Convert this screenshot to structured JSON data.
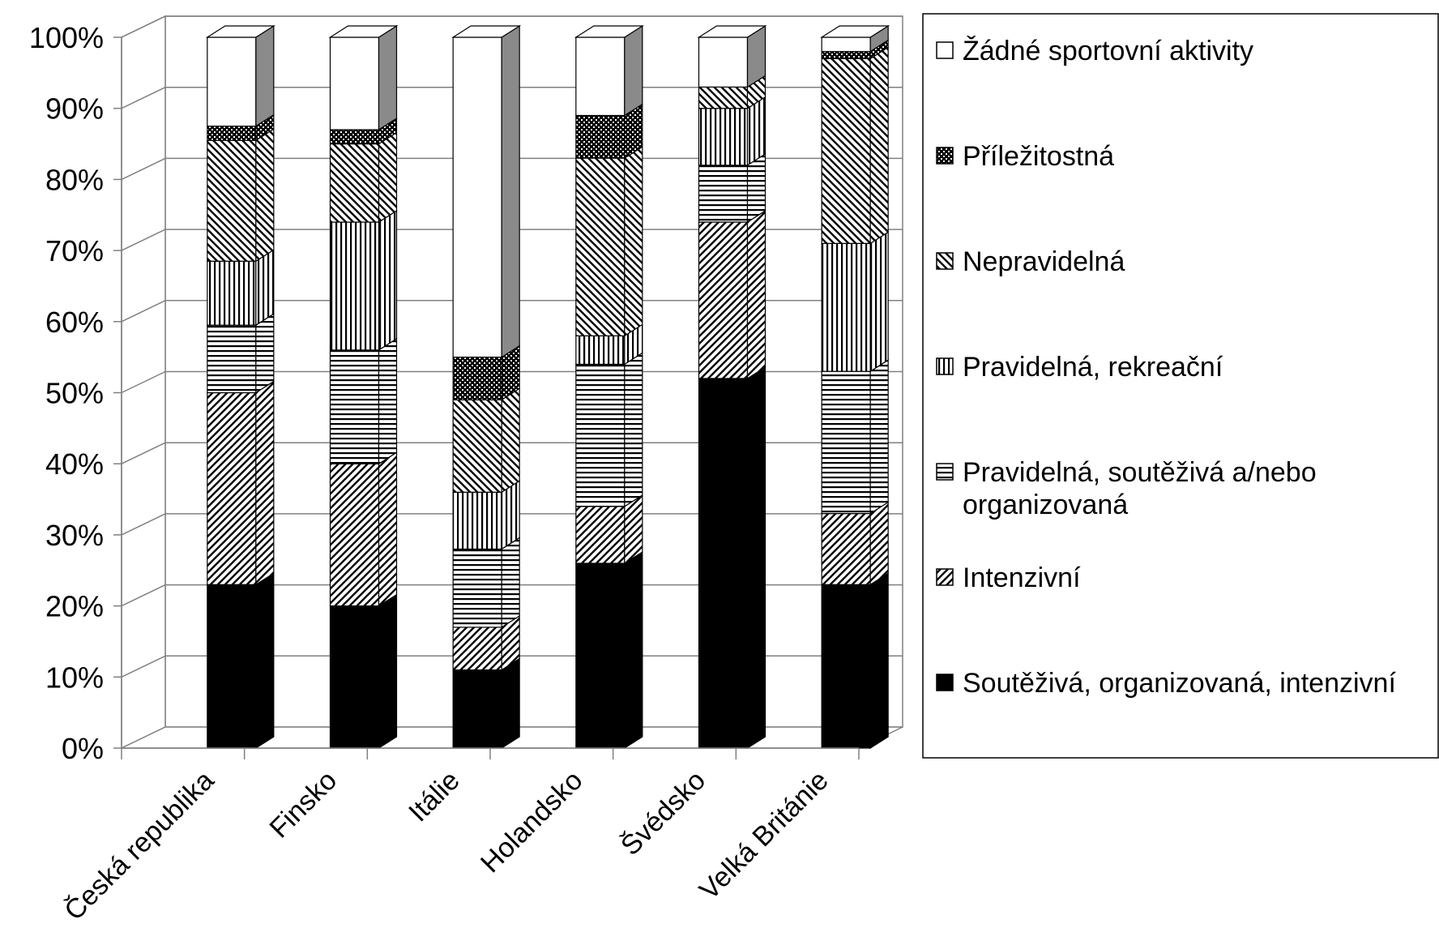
{
  "chart_data": {
    "type": "bar",
    "stacked": true,
    "percent_stacked": true,
    "three_d": true,
    "categories": [
      "Česká republika",
      "Finsko",
      "Itálie",
      "Holandsko",
      "Švédsko",
      "Velká Británie"
    ],
    "series": [
      {
        "name": "Soutěživá, organizovaná, intenzivní",
        "pattern": "solid",
        "values": [
          23,
          20,
          11,
          26,
          52,
          23
        ]
      },
      {
        "name": "Intenzivní",
        "pattern": "diag-up",
        "values": [
          27,
          20,
          6,
          8,
          22,
          10
        ]
      },
      {
        "name": "Pravidelná, soutěživá a/nebo organizovaná",
        "pattern": "horizontal",
        "values": [
          9.5,
          16,
          11,
          20,
          8,
          20
        ]
      },
      {
        "name": "Pravidelná, rekreační",
        "pattern": "vertical",
        "values": [
          9,
          18,
          8,
          4,
          8,
          18
        ]
      },
      {
        "name": "Nepravidelná",
        "pattern": "diag-down",
        "values": [
          17,
          11,
          13,
          25,
          3,
          26
        ]
      },
      {
        "name": "Příležitostná",
        "pattern": "dots",
        "values": [
          2,
          2,
          6,
          6,
          0,
          1
        ]
      },
      {
        "name": "Žádné sportovní aktivity",
        "pattern": "white",
        "values": [
          12.5,
          13,
          45,
          11,
          7,
          2
        ]
      }
    ],
    "ylim": [
      0,
      100
    ],
    "y_ticks": [
      "0%",
      "10%",
      "20%",
      "30%",
      "40%",
      "50%",
      "60%",
      "70%",
      "80%",
      "90%",
      "100%"
    ],
    "grid": true,
    "legend_position": "right",
    "legend_order": [
      "Žádné sportovní aktivity",
      "Příležitostná",
      "Nepravidelná",
      "Pravidelná, rekreační",
      "Pravidelná, soutěživá a/nebo organizovaná",
      "Intenzivní",
      "Soutěživá, organizovaná, intenzivní"
    ],
    "title": "",
    "xlabel": "",
    "ylabel": ""
  }
}
